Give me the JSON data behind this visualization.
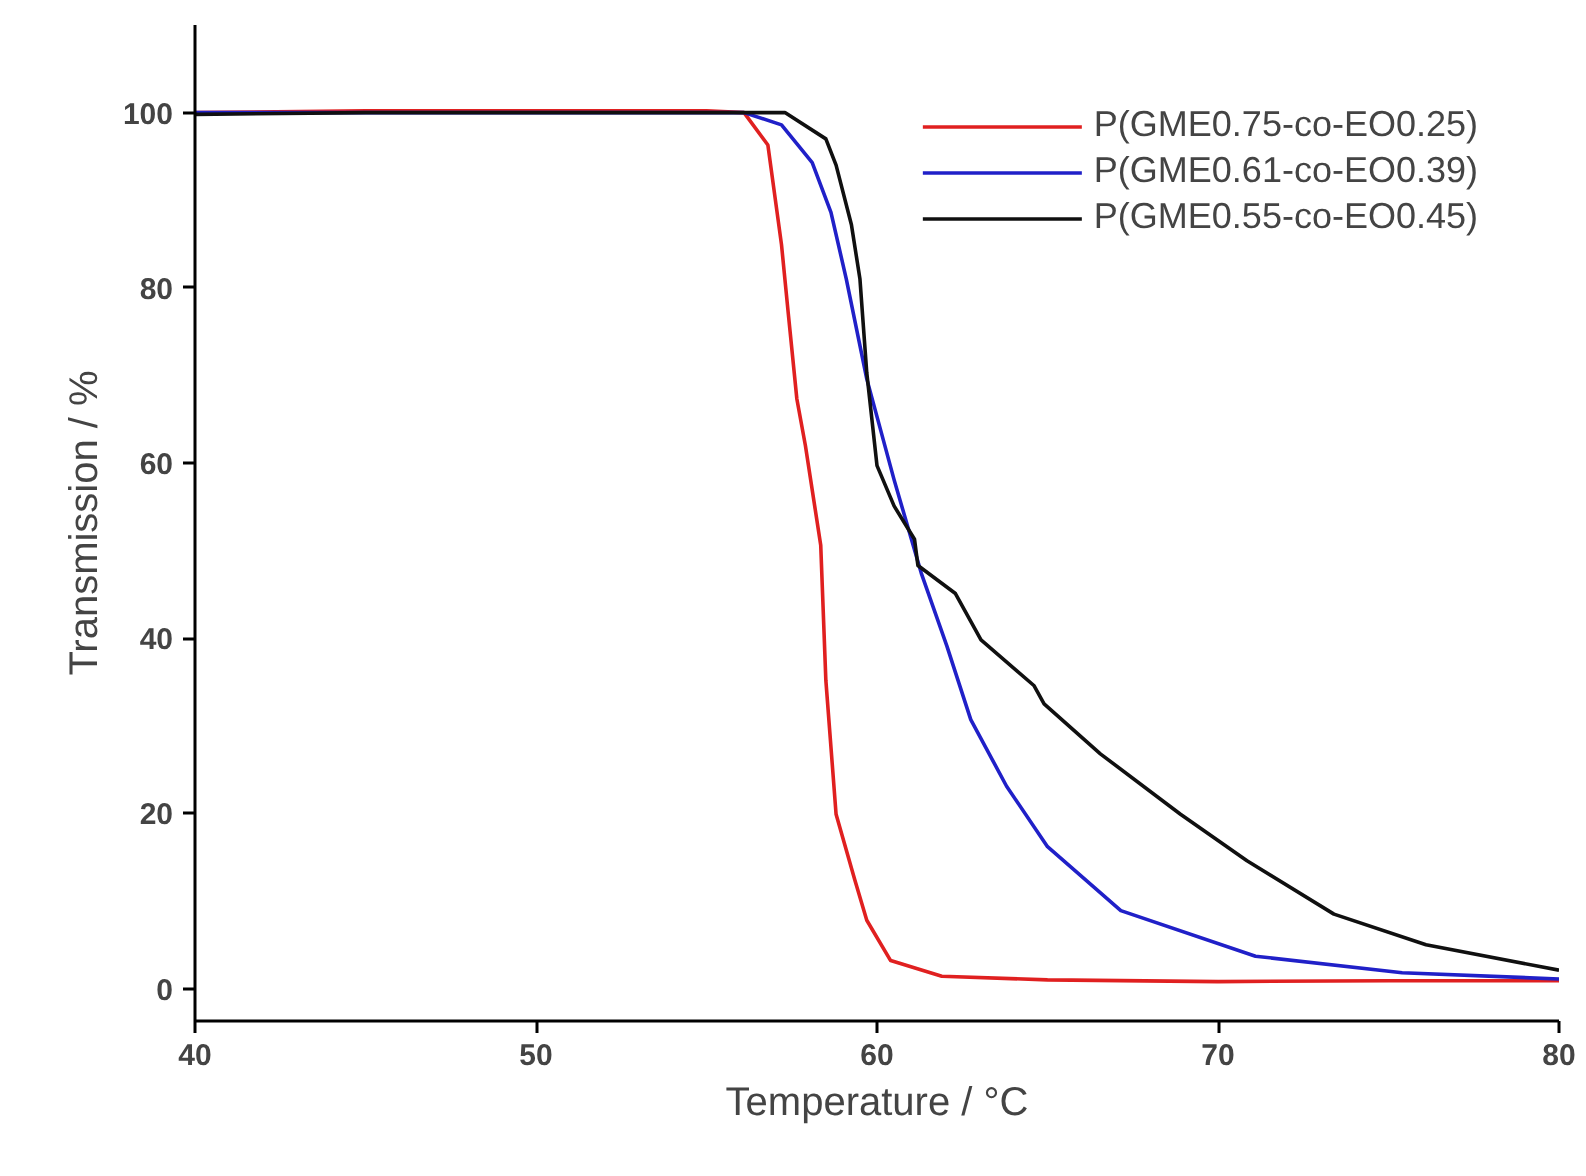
{
  "chart_data": {
    "type": "line",
    "xlabel": "Temperature / °C",
    "ylabel": "Transmission / %",
    "xlim": [
      40,
      80
    ],
    "ylim": [
      -3.7,
      110
    ],
    "xticks": [
      40,
      50,
      60,
      70,
      80
    ],
    "yticks": [
      0,
      20,
      40,
      60,
      80,
      100
    ],
    "grid": false,
    "legend": "top right",
    "marker": "none",
    "line_style": "solid",
    "series": [
      {
        "name": "P(GME0.75-co-EO0.25)",
        "color": "#e02020",
        "x": [
          40,
          45,
          50,
          55,
          56.1,
          56.8,
          57.2,
          57.4,
          57.65,
          57.9,
          58.35,
          58.5,
          58.8,
          59.35,
          59.7,
          60.4,
          61.9,
          65,
          70,
          75,
          80
        ],
        "values": [
          100,
          100.2,
          100.2,
          100.2,
          100,
          96.3,
          84.9,
          77,
          67.3,
          62,
          50.6,
          35.2,
          19.9,
          12.4,
          7.8,
          3.2,
          1.4,
          1.0,
          0.8,
          0.9,
          0.9
        ]
      },
      {
        "name": "P(GME0.61-co-EO0.39)",
        "color": "#2020c8",
        "x": [
          40,
          45,
          50,
          55,
          56.1,
          57.2,
          58.1,
          58.65,
          59.1,
          59.7,
          60.5,
          61.3,
          62.05,
          62.75,
          63.8,
          65,
          67.15,
          71.1,
          75.4,
          80
        ],
        "values": [
          100,
          100,
          100,
          100,
          100,
          98.6,
          94.3,
          88.6,
          81,
          69.6,
          58.1,
          47.4,
          39.1,
          30.7,
          23.1,
          16.2,
          8.9,
          3.7,
          1.8,
          1.1
        ]
      },
      {
        "name": "P(GME0.55-co-EO0.45)",
        "color": "#101010",
        "x": [
          40,
          45,
          50,
          55,
          57.3,
          58.5,
          58.8,
          59.25,
          59.5,
          59.7,
          60,
          60.5,
          61.1,
          61.2,
          62.3,
          63.05,
          64.6,
          64.9,
          66.55,
          68.9,
          70.85,
          73.4,
          76.1,
          80
        ],
        "values": [
          99.8,
          100,
          100,
          100,
          100,
          97,
          94,
          87.2,
          81,
          70.3,
          59.7,
          55.1,
          51.3,
          48.3,
          45.1,
          39.8,
          34.6,
          32.5,
          26.8,
          19.9,
          14.6,
          8.5,
          5,
          2.1
        ]
      }
    ]
  }
}
